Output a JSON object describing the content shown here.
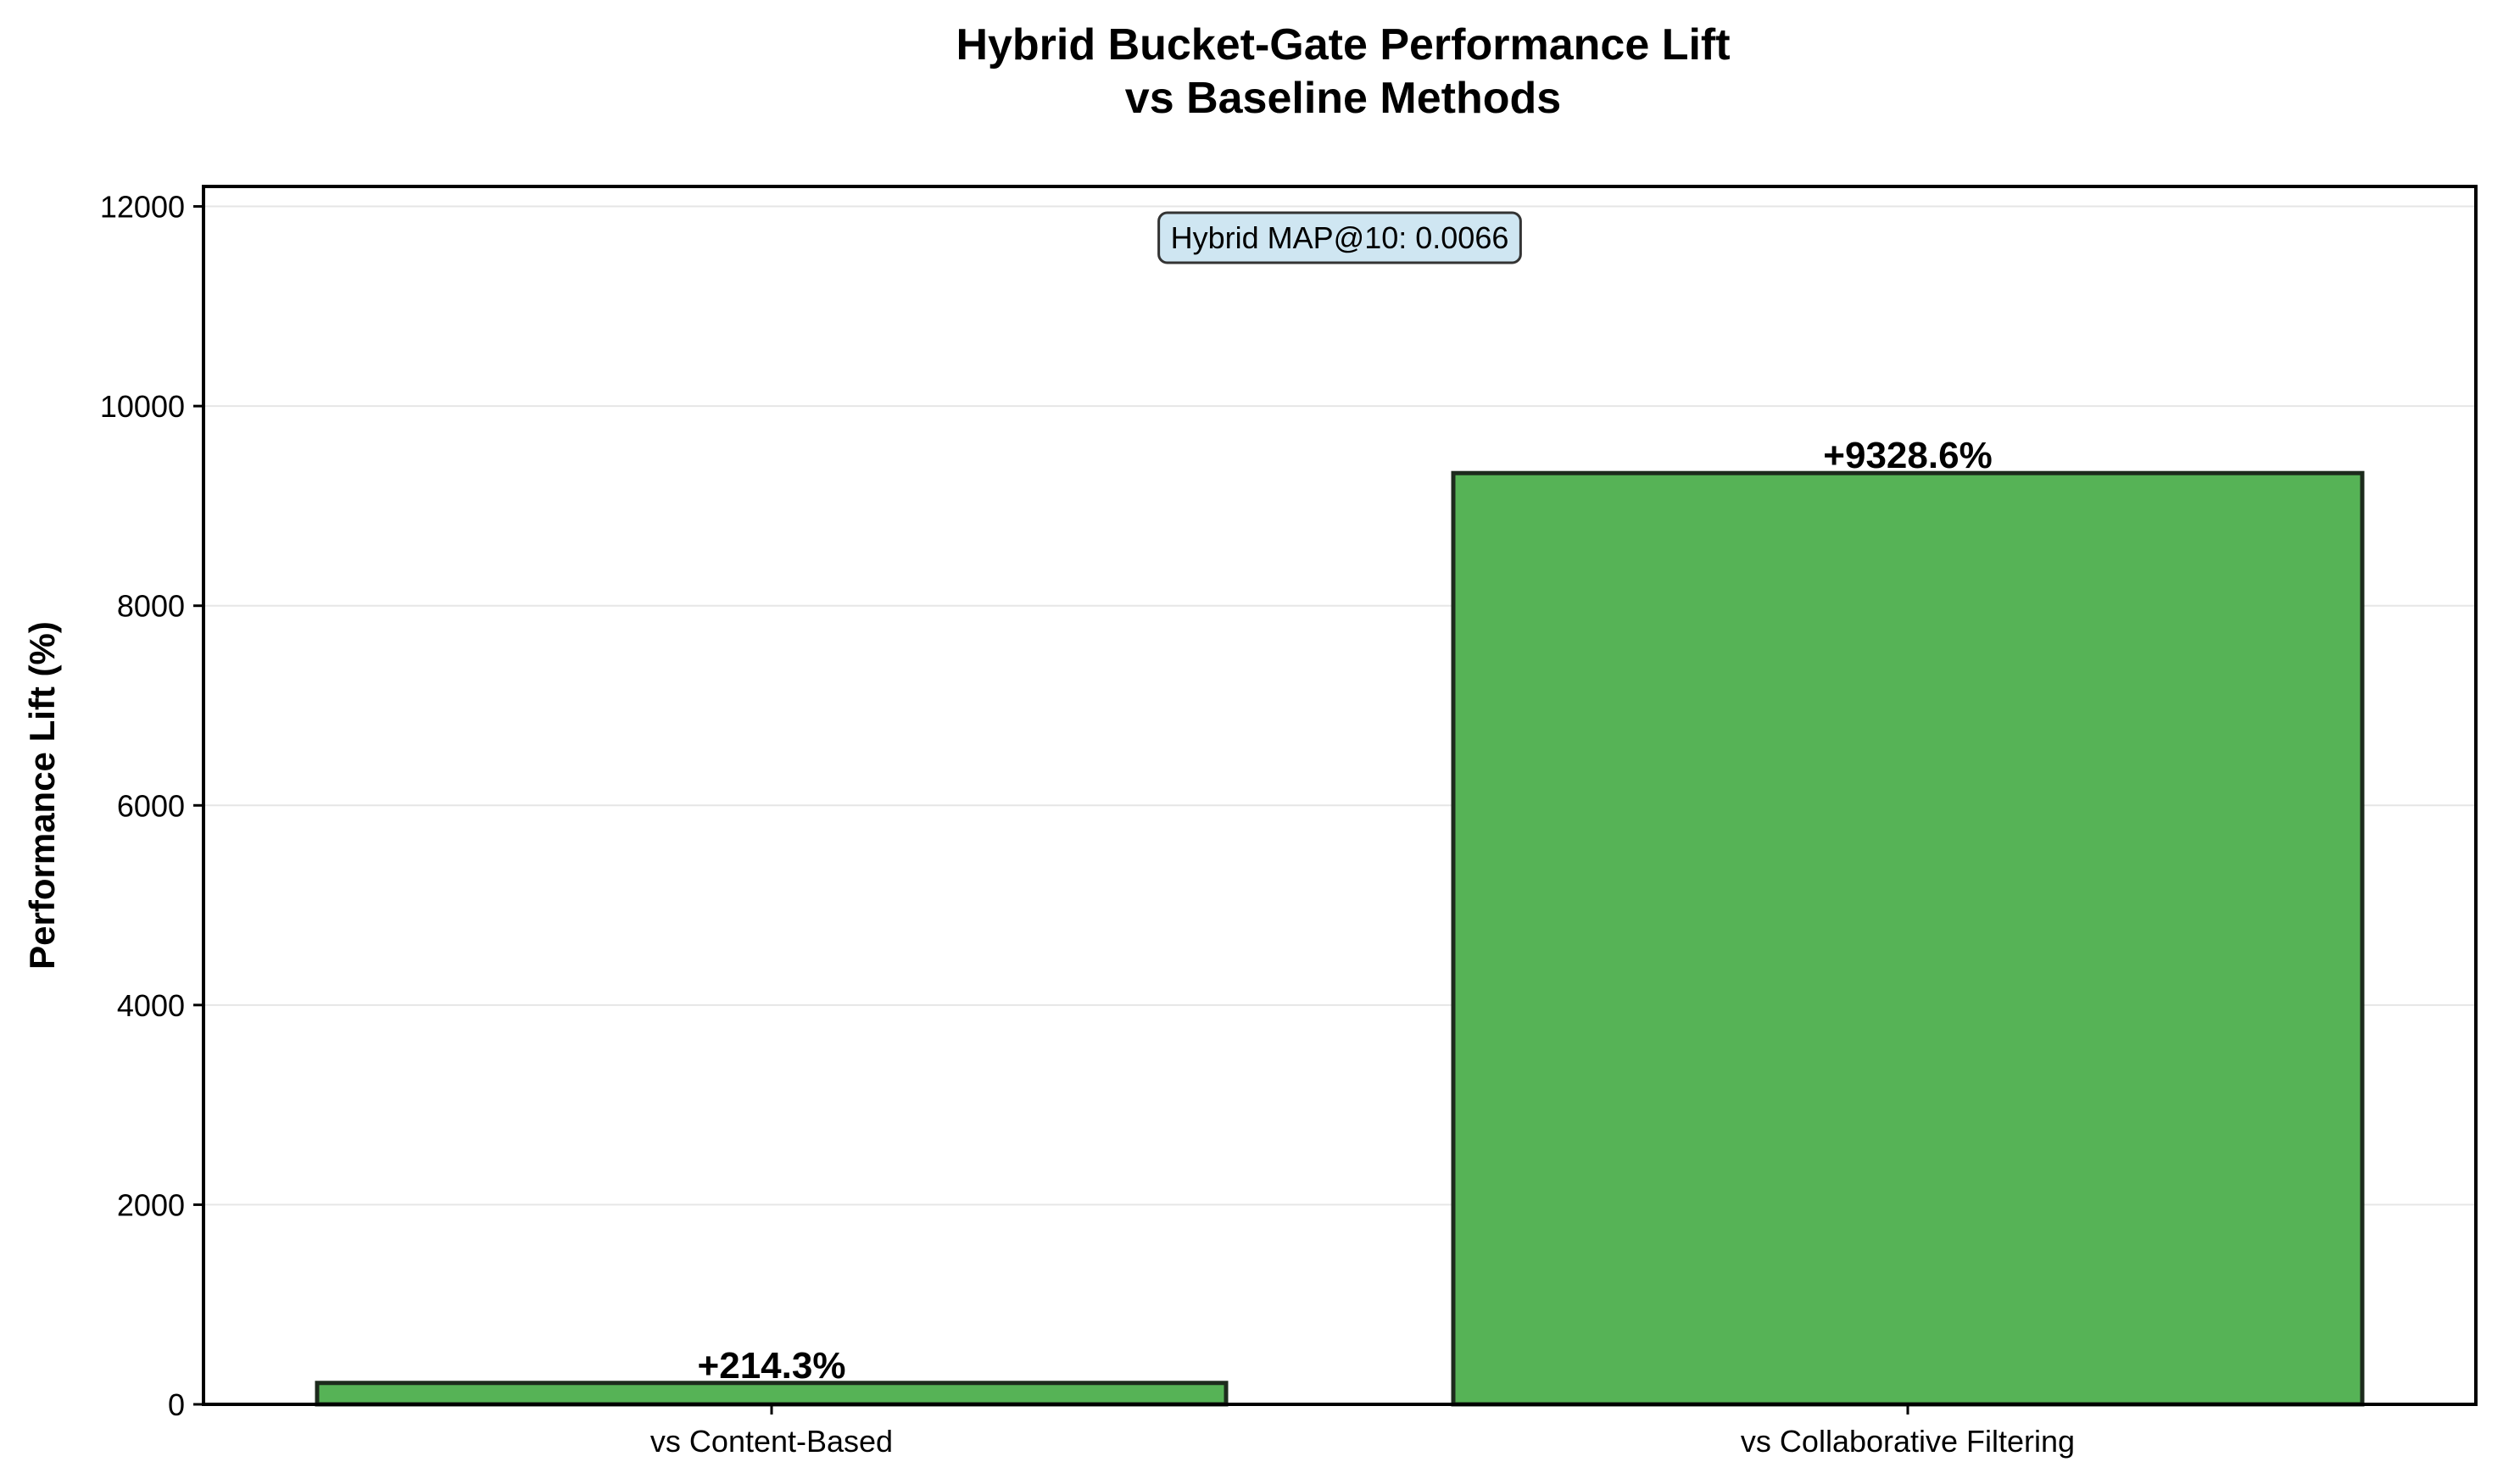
{
  "chart_data": {
    "type": "bar",
    "title_lines": [
      "Hybrid Bucket-Gate Performance Lift",
      "vs Baseline Methods"
    ],
    "xlabel": "",
    "ylabel": "Performance Lift (%)",
    "categories": [
      "vs Content-Based",
      "vs Collaborative Filtering"
    ],
    "values": [
      214.3,
      9328.6
    ],
    "data_labels": [
      "+214.3%",
      "+9328.6%"
    ],
    "ylim": [
      0,
      12200
    ],
    "yticks": [
      0,
      2000,
      4000,
      6000,
      8000,
      10000,
      12000
    ],
    "ytick_labels": [
      "0",
      "2000",
      "4000",
      "6000",
      "8000",
      "10000",
      "12000"
    ],
    "grid": "horizontal",
    "annotation": "Hybrid MAP@10: 0.0066",
    "colors": {
      "bar_fill": "#56b356",
      "bar_edge": "#1d2b1d",
      "grid": "#e6e6e6",
      "annotation_fill": "#cfe6f2",
      "annotation_edge": "#333333"
    }
  }
}
